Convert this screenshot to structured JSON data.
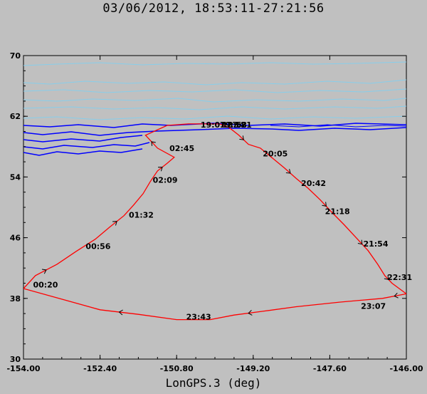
{
  "title": "03/06/2012, 18:53:11-27:21:56",
  "xlabel": "LonGPS.3 (deg)",
  "chart_data": {
    "type": "line",
    "title": "03/06/2012, 18:53:11-27:21:56",
    "xlabel": "LonGPS.3 (deg)",
    "ylabel": "",
    "xlim": [
      -154,
      -146
    ],
    "ylim": [
      30,
      70
    ],
    "x_ticks": [
      -154.0,
      -152.4,
      -150.8,
      -149.2,
      -147.6,
      -146.0
    ],
    "x_tick_labels": [
      "-154.00",
      "-152.40",
      "-150.80",
      "-149.20",
      "-147.60",
      "-146.00"
    ],
    "y_ticks": [
      30,
      38,
      46,
      54,
      62,
      70
    ],
    "y_tick_labels": [
      "30",
      "38",
      "46",
      "54",
      "62",
      "70"
    ],
    "colors": {
      "flight_track": "#ff0000",
      "contours_light": "#87ceeb",
      "contours_dark": "#0000ff",
      "background": "#c0c0c0"
    },
    "series": [
      {
        "x": [
          -149.9,
          -149.7,
          -149.5,
          -149.3,
          -149.05,
          -148.8,
          -148.55,
          -148.3,
          -148.05,
          -147.8,
          -147.55,
          -147.3,
          -147.05,
          -146.8,
          -146.6,
          -146.45,
          -146.3,
          -146.0,
          -146.5,
          -147.4,
          -148.3,
          -149.0,
          -149.6,
          -150.1,
          -150.8,
          -151.6,
          -152.4,
          -153.2,
          -154.0,
          -153.75,
          -153.3,
          -152.9,
          -152.5,
          -152.2,
          -151.9,
          -151.7,
          -151.5,
          -151.35,
          -151.2,
          -151.0,
          -150.85,
          -151.2,
          -151.45,
          -151.0,
          -150.55,
          -150.2,
          -149.9
        ],
        "y": [
          61.0,
          60.5,
          59.5,
          58.3,
          57.8,
          56.5,
          55.2,
          53.8,
          52.5,
          51.0,
          49.3,
          47.7,
          46.0,
          44.3,
          42.5,
          41.0,
          40.0,
          38.6,
          38.0,
          37.5,
          36.9,
          36.3,
          35.8,
          35.2,
          35.2,
          35.9,
          36.5,
          37.9,
          39.3,
          41.0,
          42.5,
          44.2,
          45.8,
          47.4,
          48.9,
          50.3,
          51.8,
          53.4,
          54.8,
          55.8,
          56.6,
          57.8,
          59.5,
          60.8,
          61.0,
          61.0,
          61.0
        ]
      }
    ],
    "time_labels": [
      {
        "text": "00:20",
        "x": -153.8,
        "y": 39.8
      },
      {
        "text": "00:56",
        "x": -152.7,
        "y": 44.9
      },
      {
        "text": "01:32",
        "x": -151.8,
        "y": 49.0
      },
      {
        "text": "02:09",
        "x": -151.3,
        "y": 53.6
      },
      {
        "text": "02:45",
        "x": -150.95,
        "y": 57.8
      },
      {
        "text": "20:05",
        "x": -149.0,
        "y": 57.1
      },
      {
        "text": "20:42",
        "x": -148.2,
        "y": 53.2
      },
      {
        "text": "21:18",
        "x": -147.7,
        "y": 49.5
      },
      {
        "text": "21:54",
        "x": -146.9,
        "y": 45.2
      },
      {
        "text": "22:31",
        "x": -146.4,
        "y": 40.8
      },
      {
        "text": "23:07",
        "x": -146.95,
        "y": 37.0
      },
      {
        "text": "23:43",
        "x": -150.6,
        "y": 35.6
      },
      {
        "text": "19:07",
        "x": -150.3,
        "y": 60.9
      },
      {
        "text": "19:34",
        "x": -149.9,
        "y": 60.9
      },
      {
        "text": "18:53",
        "x": -149.85,
        "y": 60.9
      },
      {
        "text": "27:21",
        "x": -149.75,
        "y": 60.9
      }
    ]
  }
}
